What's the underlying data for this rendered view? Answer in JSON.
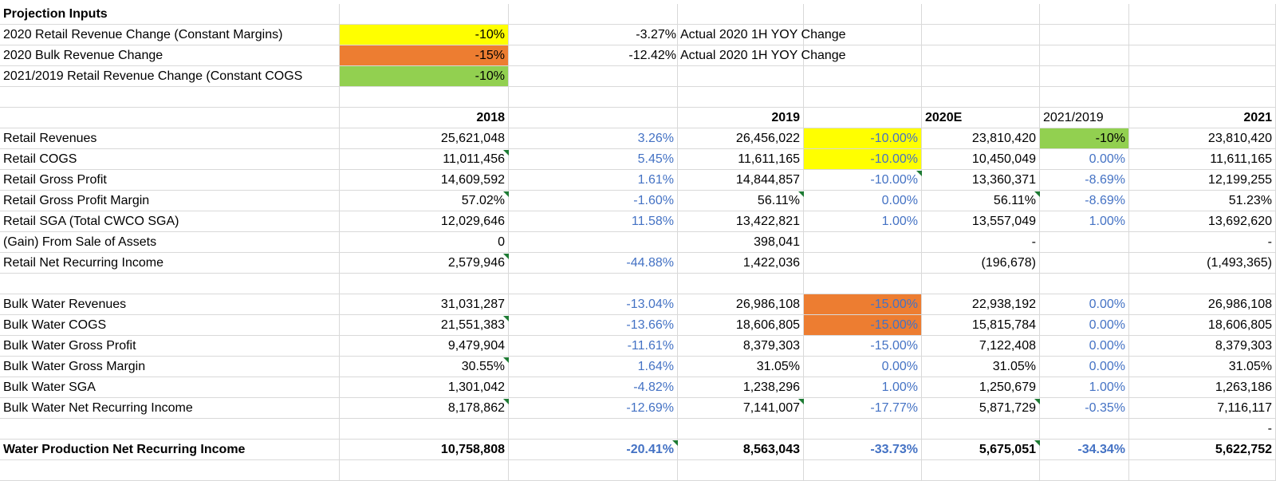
{
  "colors": {
    "yellow_fill": "#ffff00",
    "orange_fill": "#ed7d31",
    "green_fill": "#92d050",
    "blue_text": "#4472c4",
    "gridline": "#d9d9d9",
    "comment_marker": "#1e7b34"
  },
  "inputs": {
    "header": "Projection Inputs",
    "rows": [
      {
        "label": "2020 Retail Revenue Change (Constant Margins)",
        "value": "-10%",
        "actual": "-3.27%",
        "note": "Actual 2020 1H YOY Change"
      },
      {
        "label": "2020 Bulk Revenue Change",
        "value": "-15%",
        "actual": "-12.42%",
        "note": "Actual 2020 1H YOY Change"
      },
      {
        "label": "2021/2019 Retail Revenue Change (Constant COGS",
        "value": "-10%"
      }
    ]
  },
  "columns": {
    "y2018": "2018",
    "y2019": "2019",
    "y2020e": "2020E",
    "y2021_2019": "2021/2019",
    "y2021": "2021"
  },
  "rows": [
    {
      "label": "Retail  Revenues",
      "v2018": "25,621,048",
      "chg": "3.26%",
      "v2019": "26,456,022",
      "p2020": "-10.00%",
      "v2020": "23,810,420",
      "p2021": "-10%",
      "v2021": "23,810,420"
    },
    {
      "label": "Retail COGS",
      "v2018": "11,011,456",
      "chg": "5.45%",
      "v2019": "11,611,165",
      "p2020": "-10.00%",
      "v2020": "10,450,049",
      "p2021": "0.00%",
      "v2021": "11,611,165"
    },
    {
      "label": "Retail Gross Profit",
      "v2018": "14,609,592",
      "chg": "1.61%",
      "v2019": "14,844,857",
      "p2020": "-10.00%",
      "v2020": "13,360,371",
      "p2021": "-8.69%",
      "v2021": "12,199,255"
    },
    {
      "label": "Retail Gross Profit Margin",
      "v2018": "57.02%",
      "chg": "-1.60%",
      "v2019": "56.11%",
      "p2020": "0.00%",
      "v2020": "56.11%",
      "p2021": "-8.69%",
      "v2021": "51.23%"
    },
    {
      "label": "Retail SGA (Total CWCO SGA)",
      "v2018": "12,029,646",
      "chg": "11.58%",
      "v2019": "13,422,821",
      "p2020": "1.00%",
      "v2020": "13,557,049",
      "p2021": "1.00%",
      "v2021": "13,692,620"
    },
    {
      "label": "(Gain) From Sale of Assets",
      "v2018": "0",
      "chg": "",
      "v2019": "398,041",
      "p2020": "",
      "v2020": "-",
      "p2021": "",
      "v2021": "-"
    },
    {
      "label": "Retail Net Recurring Income",
      "v2018": "2,579,946",
      "chg": "-44.88%",
      "v2019": "1,422,036",
      "p2020": "",
      "v2020": "(196,678)",
      "p2021": "",
      "v2021": "(1,493,365)"
    },
    {
      "label": "",
      "v2018": "",
      "chg": "",
      "v2019": "",
      "p2020": "",
      "v2020": "",
      "p2021": "",
      "v2021": ""
    },
    {
      "label": "Bulk Water Revenues",
      "v2018": "31,031,287",
      "chg": "-13.04%",
      "v2019": "26,986,108",
      "p2020": "-15.00%",
      "v2020": "22,938,192",
      "p2021": "0.00%",
      "v2021": "26,986,108"
    },
    {
      "label": "Bulk Water COGS",
      "v2018": "21,551,383",
      "chg": "-13.66%",
      "v2019": "18,606,805",
      "p2020": "-15.00%",
      "v2020": "15,815,784",
      "p2021": "0.00%",
      "v2021": "18,606,805"
    },
    {
      "label": "Bulk Water Gross Profit",
      "v2018": "9,479,904",
      "chg": "-11.61%",
      "v2019": "8,379,303",
      "p2020": "-15.00%",
      "v2020": "7,122,408",
      "p2021": "0.00%",
      "v2021": "8,379,303"
    },
    {
      "label": "Bulk Water Gross Margin",
      "v2018": "30.55%",
      "chg": "1.64%",
      "v2019": "31.05%",
      "p2020": "0.00%",
      "v2020": "31.05%",
      "p2021": "0.00%",
      "v2021": "31.05%"
    },
    {
      "label": "Bulk Water SGA",
      "v2018": "1,301,042",
      "chg": "-4.82%",
      "v2019": "1,238,296",
      "p2020": "1.00%",
      "v2020": "1,250,679",
      "p2021": "1.00%",
      "v2021": "1,263,186"
    },
    {
      "label": "Bulk Water Net Recurring Income",
      "v2018": "8,178,862",
      "chg": "-12.69%",
      "v2019": "7,141,007",
      "p2020": "-17.77%",
      "v2020": "5,871,729",
      "p2021": "-0.35%",
      "v2021": "7,116,117"
    },
    {
      "label": "",
      "v2018": "",
      "chg": "",
      "v2019": "",
      "p2020": "",
      "v2020": "",
      "p2021": "",
      "v2021": "-"
    },
    {
      "label": "Water Production Net Recurring Income",
      "v2018": "10,758,808",
      "chg": "-20.41%",
      "v2019": "8,563,043",
      "p2020": "-33.73%",
      "v2020": "5,675,051",
      "p2021": "-34.34%",
      "v2021": "5,622,752"
    }
  ]
}
